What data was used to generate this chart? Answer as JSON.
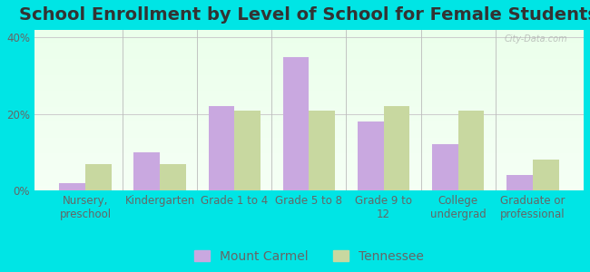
{
  "title": "School Enrollment by Level of School for Female Students",
  "categories": [
    "Nursery,\npreschool",
    "Kindergarten",
    "Grade 1 to 4",
    "Grade 5 to 8",
    "Grade 9 to\n12",
    "College\nundergrad",
    "Graduate or\nprofessional"
  ],
  "mount_carmel": [
    2.0,
    10.0,
    22.0,
    35.0,
    18.0,
    12.0,
    4.0
  ],
  "tennessee": [
    7.0,
    7.0,
    21.0,
    21.0,
    22.0,
    21.0,
    8.0
  ],
  "bar_color_mc": "#c9a8e0",
  "bar_color_tn": "#c8d8a0",
  "background_outer": "#00e5e5",
  "background_plot_bottom": "#f5fff5",
  "yticks": [
    0,
    20,
    40
  ],
  "ylim": [
    0,
    42
  ],
  "legend_mc": "Mount Carmel",
  "legend_tn": "Tennessee",
  "title_fontsize": 14,
  "tick_fontsize": 8.5,
  "legend_fontsize": 10,
  "watermark": "City-Data.com"
}
